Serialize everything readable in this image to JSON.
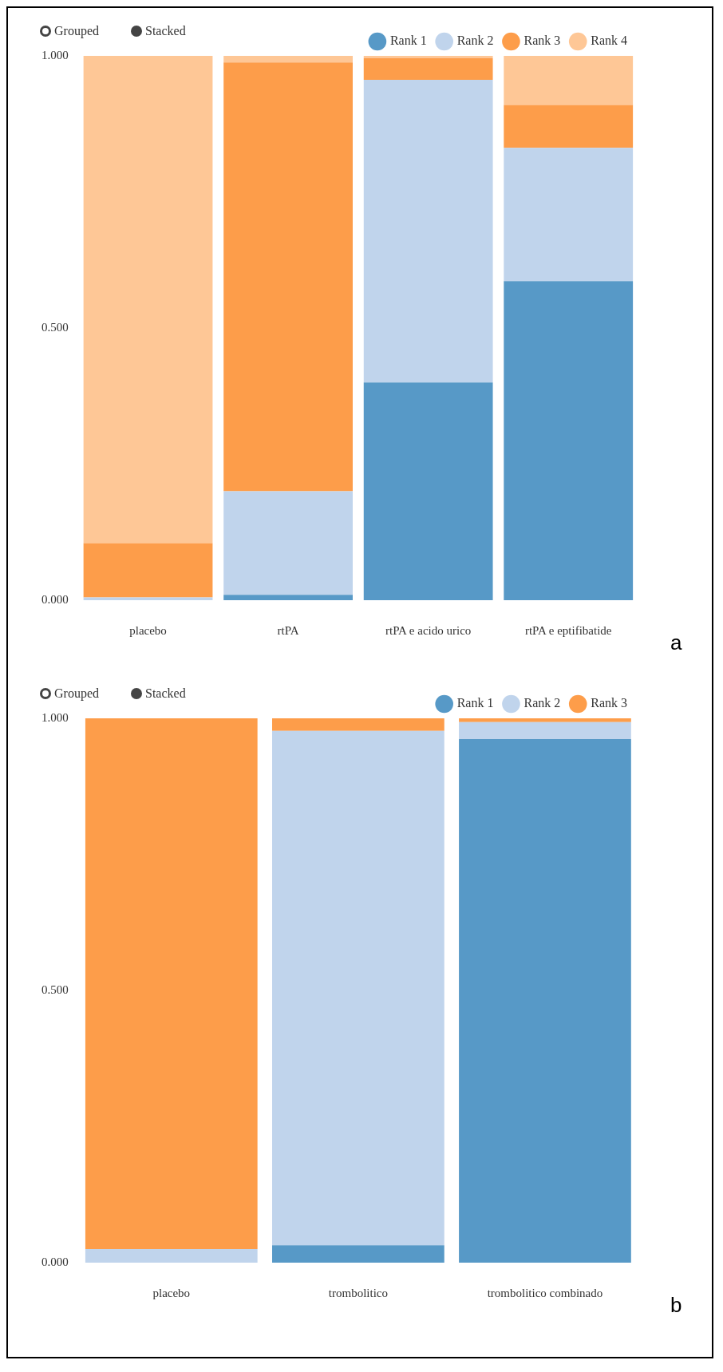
{
  "chart_data": [
    {
      "type": "bar",
      "stacked": true,
      "categories": [
        "placebo",
        "rtPA",
        "rtPA e acido urico",
        "rtPA e eptifibatide"
      ],
      "series": [
        {
          "name": "Rank 1",
          "color": "#5799c7",
          "values": [
            0.0,
            0.01,
            0.4,
            0.586
          ]
        },
        {
          "name": "Rank 2",
          "color": "#c0d4ec",
          "values": [
            0.005,
            0.19,
            0.556,
            0.245
          ]
        },
        {
          "name": "Rank 3",
          "color": "#fd9d4a",
          "values": [
            0.1,
            0.788,
            0.04,
            0.079
          ]
        },
        {
          "name": "Rank 4",
          "color": "#fec796",
          "values": [
            0.895,
            0.012,
            0.004,
            0.09
          ]
        }
      ],
      "ylim": [
        0,
        1
      ],
      "yticks": [
        {
          "value": 0,
          "label": "0.000"
        },
        {
          "value": 0.5,
          "label": "0.500"
        },
        {
          "value": 1,
          "label": "1.000"
        }
      ],
      "grid": false,
      "legend": "top right",
      "annotations": [
        "Grouped",
        "Stacked",
        "a"
      ]
    },
    {
      "type": "bar",
      "stacked": true,
      "categories": [
        "placebo",
        "trombolitico",
        "trombolitico combinado"
      ],
      "series": [
        {
          "name": "Rank 1",
          "color": "#5799c7",
          "values": [
            0.0,
            0.032,
            0.962
          ]
        },
        {
          "name": "Rank 2",
          "color": "#c0d4ec",
          "values": [
            0.025,
            0.945,
            0.031
          ]
        },
        {
          "name": "Rank 3",
          "color": "#fd9d4a",
          "values": [
            0.975,
            0.023,
            0.007
          ]
        }
      ],
      "ylim": [
        0,
        1
      ],
      "yticks": [
        {
          "value": 0,
          "label": "0.000"
        },
        {
          "value": 0.5,
          "label": "0.500"
        },
        {
          "value": 1,
          "label": "1.000"
        }
      ],
      "grid": false,
      "legend": "top right",
      "annotations": [
        "Grouped",
        "Stacked",
        "b"
      ]
    }
  ]
}
